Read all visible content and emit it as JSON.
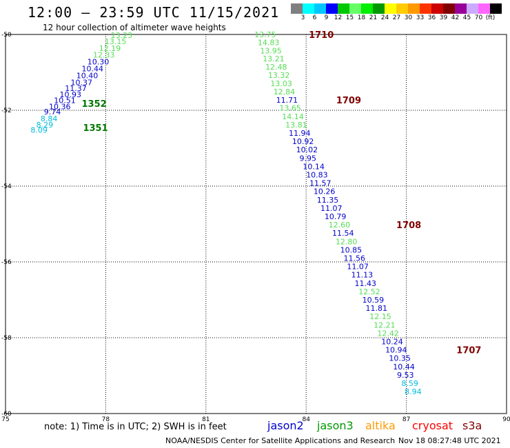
{
  "header": {
    "title": "12:00 – 23:59 UTC 11/15/2021",
    "subtitle": "12 hour collection of altimeter wave heights"
  },
  "scale": {
    "colors": [
      "#7f7f7f",
      "#00ffff",
      "#00c8ff",
      "#0000ff",
      "#00c800",
      "#66ff66",
      "#00ee00",
      "#009900",
      "#ffff00",
      "#ffcc00",
      "#ff9900",
      "#ff3300",
      "#cc0000",
      "#800000",
      "#990099",
      "#ccaaff",
      "#ff66ff",
      "#000000"
    ],
    "labels": [
      "3",
      "6",
      "9",
      "12",
      "15",
      "18",
      "21",
      "24",
      "27",
      "30",
      "33",
      "36",
      "39",
      "42",
      "45",
      "70",
      "(ft)"
    ]
  },
  "axes": {
    "x_ticks": [
      "75",
      "78",
      "81",
      "84",
      "87",
      "90"
    ],
    "y_ticks": [
      "-50",
      "-52",
      "-54",
      "-56",
      "-58",
      "-60"
    ]
  },
  "tracks": [
    {
      "pass": "1351",
      "pass_color": "#007700",
      "label_pos": [
        77.32,
        -52.45
      ],
      "points": [
        {
          "lon": 75.75,
          "lat": -52.52,
          "v": "8.09",
          "c": "#00bbdd"
        },
        {
          "lon": 75.92,
          "lat": -52.38,
          "v": "8.29",
          "c": "#00bbdd"
        },
        {
          "lon": 76.05,
          "lat": -52.22,
          "v": "8.84",
          "c": "#00bbdd"
        }
      ]
    },
    {
      "pass": "1352",
      "pass_color": "#007700",
      "label_pos": [
        77.28,
        -51.82
      ],
      "points": [
        {
          "lon": 76.15,
          "lat": -52.04,
          "v": "9.74",
          "c": "#0000cc"
        },
        {
          "lon": 76.3,
          "lat": -51.9,
          "v": "10.36",
          "c": "#0000cc"
        },
        {
          "lon": 76.45,
          "lat": -51.74,
          "v": "10.51",
          "c": "#0000cc"
        },
        {
          "lon": 76.62,
          "lat": -51.58,
          "v": "10.93",
          "c": "#0000cc"
        },
        {
          "lon": 76.78,
          "lat": -51.42,
          "v": "11.37",
          "c": "#0000cc"
        },
        {
          "lon": 76.95,
          "lat": -51.26,
          "v": "10.37",
          "c": "#0000cc"
        },
        {
          "lon": 77.12,
          "lat": -51.08,
          "v": "10.40",
          "c": "#0000cc"
        },
        {
          "lon": 77.28,
          "lat": -50.9,
          "v": "10.44",
          "c": "#0000cc"
        },
        {
          "lon": 77.45,
          "lat": -50.72,
          "v": "10.30",
          "c": "#0000cc"
        },
        {
          "lon": 77.62,
          "lat": -50.54,
          "v": "12.33",
          "c": "#55dd55"
        },
        {
          "lon": 77.8,
          "lat": -50.36,
          "v": "12.19",
          "c": "#55dd55"
        },
        {
          "lon": 77.97,
          "lat": -50.18,
          "v": "13.15",
          "c": "#55dd55"
        },
        {
          "lon": 78.15,
          "lat": -50.02,
          "v": "13.23",
          "c": "#55dd55"
        }
      ]
    },
    {
      "pass": "1710",
      "pass_color": "#800000",
      "label_pos": [
        84.08,
        -50.0
      ],
      "points": [
        {
          "lon": 82.45,
          "lat": -50.0,
          "v": "13.75",
          "c": "#55dd55"
        },
        {
          "lon": 82.55,
          "lat": -50.21,
          "v": "14.83",
          "c": "#55dd55"
        },
        {
          "lon": 82.62,
          "lat": -50.43,
          "v": "13.95",
          "c": "#55dd55"
        },
        {
          "lon": 82.7,
          "lat": -50.64,
          "v": "13.21",
          "c": "#55dd55"
        },
        {
          "lon": 82.78,
          "lat": -50.85,
          "v": "12.48",
          "c": "#55dd55"
        },
        {
          "lon": 82.86,
          "lat": -51.07,
          "v": "13.32",
          "c": "#55dd55"
        },
        {
          "lon": 82.93,
          "lat": -51.29,
          "v": "13.03",
          "c": "#55dd55"
        },
        {
          "lon": 83.02,
          "lat": -51.51,
          "v": "12.84",
          "c": "#55dd55"
        }
      ]
    },
    {
      "pass": "1709",
      "pass_color": "#800000",
      "label_pos": [
        84.9,
        -51.73
      ],
      "points": [
        {
          "lon": 83.1,
          "lat": -51.73,
          "v": "11.71",
          "c": "#0000cc"
        },
        {
          "lon": 83.2,
          "lat": -51.94,
          "v": "13.65",
          "c": "#55dd55"
        },
        {
          "lon": 83.28,
          "lat": -52.16,
          "v": "14.14",
          "c": "#55dd55"
        },
        {
          "lon": 83.38,
          "lat": -52.38,
          "v": "13.81",
          "c": "#55dd55"
        },
        {
          "lon": 83.48,
          "lat": -52.6,
          "v": "11.94",
          "c": "#0000cc"
        },
        {
          "lon": 83.58,
          "lat": -52.82,
          "v": "10.92",
          "c": "#0000cc"
        },
        {
          "lon": 83.7,
          "lat": -53.04,
          "v": "10.02",
          "c": "#0000cc"
        },
        {
          "lon": 83.8,
          "lat": -53.26,
          "v": "9.95",
          "c": "#0000cc"
        },
        {
          "lon": 83.9,
          "lat": -53.48,
          "v": "10.14",
          "c": "#0000cc"
        },
        {
          "lon": 84.0,
          "lat": -53.7,
          "v": "10.83",
          "c": "#0000cc"
        },
        {
          "lon": 84.1,
          "lat": -53.92,
          "v": "11.57",
          "c": "#0000cc"
        },
        {
          "lon": 84.22,
          "lat": -54.14,
          "v": "10.26",
          "c": "#0000cc"
        },
        {
          "lon": 84.32,
          "lat": -54.36,
          "v": "11.35",
          "c": "#0000cc"
        },
        {
          "lon": 84.43,
          "lat": -54.58,
          "v": "11.07",
          "c": "#0000cc"
        },
        {
          "lon": 84.55,
          "lat": -54.8,
          "v": "10.79",
          "c": "#0000cc"
        }
      ]
    },
    {
      "pass": "1708",
      "pass_color": "#800000",
      "label_pos": [
        86.7,
        -55.02
      ],
      "points": [
        {
          "lon": 84.67,
          "lat": -55.02,
          "v": "12.60",
          "c": "#55dd55"
        },
        {
          "lon": 84.78,
          "lat": -55.24,
          "v": "11.54",
          "c": "#0000cc"
        },
        {
          "lon": 84.88,
          "lat": -55.46,
          "v": "12.80",
          "c": "#55dd55"
        },
        {
          "lon": 85.02,
          "lat": -55.68,
          "v": "10.85",
          "c": "#0000cc"
        },
        {
          "lon": 85.12,
          "lat": -55.9,
          "v": "11.56",
          "c": "#0000cc"
        },
        {
          "lon": 85.22,
          "lat": -56.12,
          "v": "11.07",
          "c": "#0000cc"
        },
        {
          "lon": 85.35,
          "lat": -56.34,
          "v": "11.13",
          "c": "#0000cc"
        },
        {
          "lon": 85.45,
          "lat": -56.56,
          "v": "11.43",
          "c": "#0000cc"
        },
        {
          "lon": 85.57,
          "lat": -56.78,
          "v": "12.52",
          "c": "#55dd55"
        },
        {
          "lon": 85.68,
          "lat": -57.0,
          "v": "10.59",
          "c": "#0000cc"
        },
        {
          "lon": 85.78,
          "lat": -57.22,
          "v": "11.81",
          "c": "#0000cc"
        },
        {
          "lon": 85.9,
          "lat": -57.44,
          "v": "12.15",
          "c": "#55dd55"
        },
        {
          "lon": 86.02,
          "lat": -57.66,
          "v": "12.21",
          "c": "#55dd55"
        },
        {
          "lon": 86.13,
          "lat": -57.88,
          "v": "12.42",
          "c": "#55dd55"
        },
        {
          "lon": 86.25,
          "lat": -58.1,
          "v": "10.24",
          "c": "#0000cc"
        }
      ]
    },
    {
      "pass": "1707",
      "pass_color": "#800000",
      "label_pos": [
        88.5,
        -58.32
      ],
      "points": [
        {
          "lon": 86.37,
          "lat": -58.32,
          "v": "10.94",
          "c": "#0000cc"
        },
        {
          "lon": 86.48,
          "lat": -58.54,
          "v": "10.35",
          "c": "#0000cc"
        },
        {
          "lon": 86.6,
          "lat": -58.76,
          "v": "10.44",
          "c": "#0000cc"
        },
        {
          "lon": 86.72,
          "lat": -58.98,
          "v": "9.53",
          "c": "#0000cc"
        },
        {
          "lon": 86.85,
          "lat": -59.2,
          "v": "8.59",
          "c": "#00bbdd"
        },
        {
          "lon": 86.95,
          "lat": -59.42,
          "v": "8.94",
          "c": "#00bbdd"
        }
      ]
    }
  ],
  "footer": {
    "note": "note:  1) Time is in UTC;  2) SWH is in feet",
    "satellites": [
      {
        "name": "jason2",
        "color": "#0000cc"
      },
      {
        "name": "jason3",
        "color": "#009900"
      },
      {
        "name": "altika",
        "color": "#ff9900"
      },
      {
        "name": "cryosat",
        "color": "#ff0000"
      },
      {
        "name": "s3a",
        "color": "#800000"
      }
    ],
    "credit": "NOAA/NESDIS Center for Satellite Applications and Research",
    "timestamp": "Nov 18 08:27:48 UTC 2021"
  }
}
